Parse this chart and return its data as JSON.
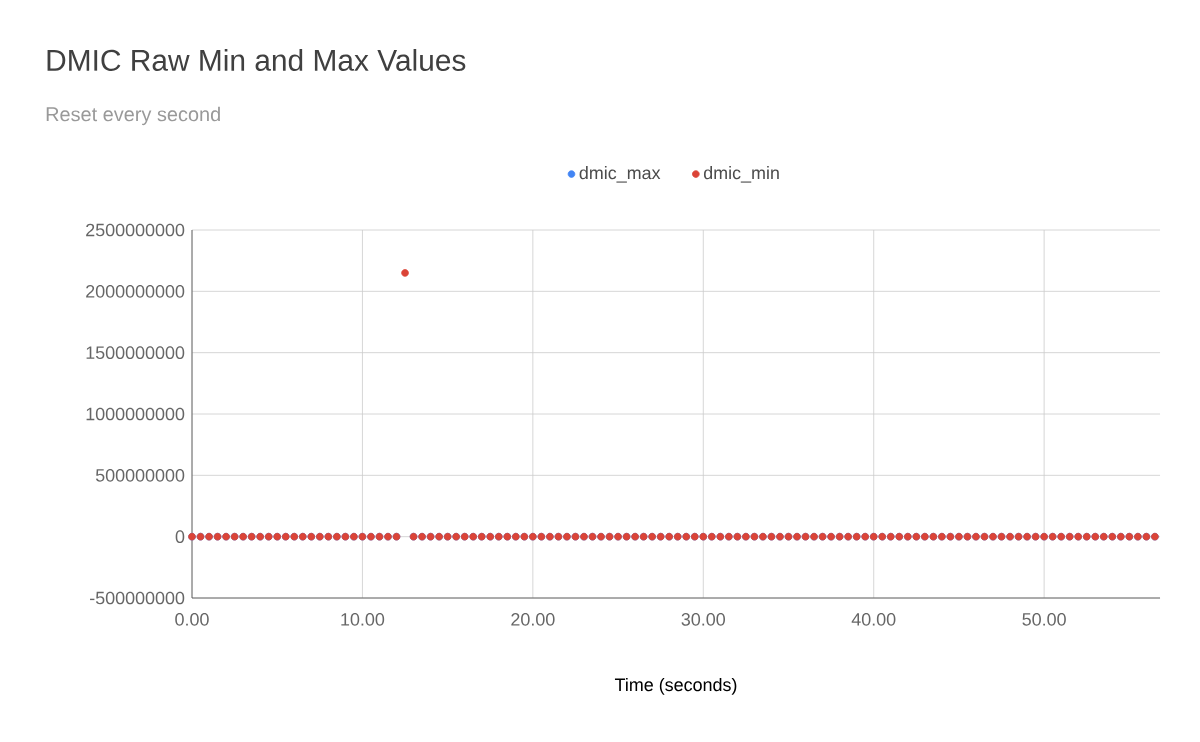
{
  "chart_data": {
    "type": "scatter",
    "title": "DMIC Raw Min and Max Values",
    "subtitle": "Reset every second",
    "xlabel": "Time (seconds)",
    "x": [
      0,
      0.5,
      1,
      1.5,
      2,
      2.5,
      3,
      3.5,
      4,
      4.5,
      5,
      5.5,
      6,
      6.5,
      7,
      7.5,
      8,
      8.5,
      9,
      9.5,
      10,
      10.5,
      11,
      11.5,
      12,
      12.5,
      13,
      13.5,
      14,
      14.5,
      15,
      15.5,
      16,
      16.5,
      17,
      17.5,
      18,
      18.5,
      19,
      19.5,
      20,
      20.5,
      21,
      21.5,
      22,
      22.5,
      23,
      23.5,
      24,
      24.5,
      25,
      25.5,
      26,
      26.5,
      27,
      27.5,
      28,
      28.5,
      29,
      29.5,
      30,
      30.5,
      31,
      31.5,
      32,
      32.5,
      33,
      33.5,
      34,
      34.5,
      35,
      35.5,
      36,
      36.5,
      37,
      37.5,
      38,
      38.5,
      39,
      39.5,
      40,
      40.5,
      41,
      41.5,
      42,
      42.5,
      43,
      43.5,
      44,
      44.5,
      45,
      45.5,
      46,
      46.5,
      47,
      47.5,
      48,
      48.5,
      49,
      49.5,
      50,
      50.5,
      51,
      51.5,
      52,
      52.5,
      53,
      53.5,
      54,
      54.5,
      55,
      55.5,
      56,
      56.5
    ],
    "series": [
      {
        "name": "dmic_max",
        "color": "#4285f4",
        "values": [
          0,
          0,
          0,
          0,
          0,
          0,
          0,
          0,
          0,
          0,
          0,
          0,
          0,
          0,
          0,
          0,
          0,
          0,
          0,
          0,
          0,
          0,
          0,
          0,
          0,
          null,
          0,
          0,
          0,
          0,
          0,
          0,
          0,
          0,
          0,
          0,
          0,
          0,
          0,
          0,
          0,
          0,
          0,
          0,
          0,
          0,
          0,
          0,
          0,
          0,
          0,
          0,
          0,
          0,
          0,
          0,
          0,
          0,
          0,
          0,
          0,
          0,
          0,
          0,
          0,
          0,
          0,
          0,
          0,
          0,
          0,
          0,
          0,
          0,
          0,
          0,
          0,
          0,
          0,
          0,
          0,
          0,
          0,
          0,
          0,
          0,
          0,
          0,
          0,
          0,
          0,
          0,
          0,
          0,
          0,
          0,
          0,
          0,
          0,
          0,
          0,
          0,
          0,
          0,
          0,
          0,
          0,
          0,
          0,
          0,
          0,
          0,
          0,
          0
        ]
      },
      {
        "name": "dmic_min",
        "color": "#db4437",
        "values": [
          0,
          0,
          0,
          0,
          0,
          0,
          0,
          0,
          0,
          0,
          0,
          0,
          0,
          0,
          0,
          0,
          0,
          0,
          0,
          0,
          0,
          0,
          0,
          0,
          0,
          2150000000,
          0,
          0,
          0,
          0,
          0,
          0,
          0,
          0,
          0,
          0,
          0,
          0,
          0,
          0,
          0,
          0,
          0,
          0,
          0,
          0,
          0,
          0,
          0,
          0,
          0,
          0,
          0,
          0,
          0,
          0,
          0,
          0,
          0,
          0,
          0,
          0,
          0,
          0,
          0,
          0,
          0,
          0,
          0,
          0,
          0,
          0,
          0,
          0,
          0,
          0,
          0,
          0,
          0,
          0,
          0,
          0,
          0,
          0,
          0,
          0,
          0,
          0,
          0,
          0,
          0,
          0,
          0,
          0,
          0,
          0,
          0,
          0,
          0,
          0,
          0,
          0,
          0,
          0,
          0,
          0,
          0,
          0,
          0,
          0,
          0,
          0,
          0,
          0
        ]
      }
    ],
    "xlim": [
      0,
      56.8
    ],
    "ylim": [
      -500000000,
      2500000000
    ],
    "xticks": [
      {
        "value": 0,
        "label": "0.00"
      },
      {
        "value": 10,
        "label": "10.00"
      },
      {
        "value": 20,
        "label": "20.00"
      },
      {
        "value": 30,
        "label": "30.00"
      },
      {
        "value": 40,
        "label": "40.00"
      },
      {
        "value": 50,
        "label": "50.00"
      }
    ],
    "yticks": [
      -500000000,
      0,
      500000000,
      1000000000,
      1500000000,
      2000000000,
      2500000000
    ],
    "grid": true,
    "legend": "top",
    "marker": "circle"
  }
}
